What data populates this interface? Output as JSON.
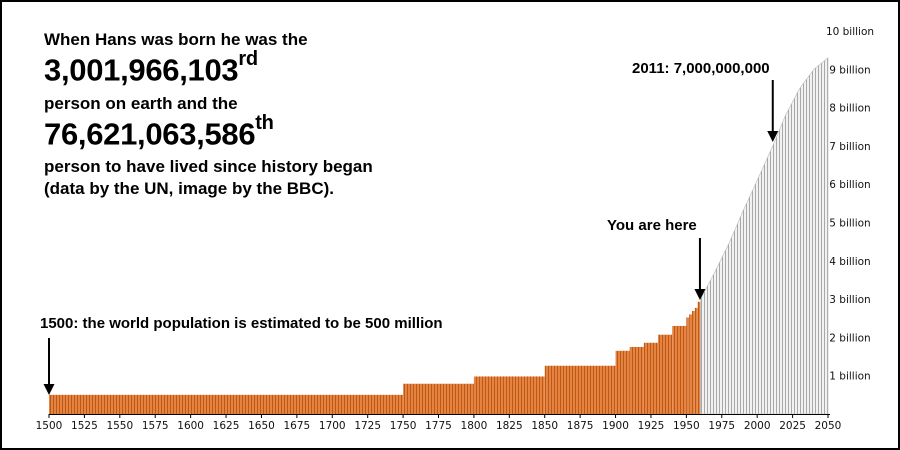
{
  "intro": {
    "line1": "When Hans was born he was the",
    "number1": "3,001,966,103",
    "suffix1": "rd",
    "line2": "person on earth and the",
    "number2": "76,621,063,586",
    "suffix2": "th",
    "line3": "person to have lived since history began",
    "line4": "(data by the UN, image by the BBC)."
  },
  "annotations": {
    "start": "1500: the world population is estimated to be 500 million",
    "here": "You are here",
    "y2011": "2011: 7,000,000,000"
  },
  "colors": {
    "past": "#e8833f",
    "past_stripe": "#b85a1c",
    "future": "#f2f2f2",
    "future_stripe": "#a8a8a8",
    "axis": "#000000"
  },
  "chart_data": {
    "type": "bar",
    "xlabel": "",
    "ylabel": "",
    "xlim": [
      1500,
      2050
    ],
    "ylim": [
      0,
      10
    ],
    "x_ticks": [
      1500,
      1525,
      1550,
      1575,
      1600,
      1625,
      1650,
      1675,
      1700,
      1725,
      1750,
      1775,
      1800,
      1825,
      1850,
      1875,
      1900,
      1925,
      1950,
      1975,
      2000,
      2025,
      2050
    ],
    "y_ticks": [
      {
        "value": 1,
        "label": "1 billion"
      },
      {
        "value": 2,
        "label": "2 billion"
      },
      {
        "value": 3,
        "label": "3 billion"
      },
      {
        "value": 4,
        "label": "4 billion"
      },
      {
        "value": 5,
        "label": "5 billion"
      },
      {
        "value": 6,
        "label": "6 billion"
      },
      {
        "value": 7,
        "label": "7 billion"
      },
      {
        "value": 8,
        "label": "8 billion"
      },
      {
        "value": 9,
        "label": "9 billion"
      },
      {
        "value": 10,
        "label": "10 billion"
      }
    ],
    "series": [
      {
        "values": [
          {
            "start": 1500,
            "end": 1750,
            "y": 0.5
          },
          {
            "start": 1750,
            "end": 1800,
            "y": 0.79
          },
          {
            "start": 1800,
            "end": 1850,
            "y": 0.98
          },
          {
            "start": 1850,
            "end": 1900,
            "y": 1.26
          },
          {
            "start": 1900,
            "end": 1910,
            "y": 1.65
          },
          {
            "start": 1910,
            "end": 1920,
            "y": 1.75
          },
          {
            "start": 1920,
            "end": 1930,
            "y": 1.86
          },
          {
            "start": 1930,
            "end": 1940,
            "y": 2.07
          },
          {
            "start": 1940,
            "end": 1950,
            "y": 2.3
          },
          {
            "start": 1950,
            "end": 1952,
            "y": 2.52
          },
          {
            "start": 1952,
            "end": 1954,
            "y": 2.6
          },
          {
            "start": 1954,
            "end": 1956,
            "y": 2.69
          },
          {
            "start": 1956,
            "end": 1958,
            "y": 2.77
          },
          {
            "start": 1958,
            "end": 1960,
            "y": 2.93
          }
        ]
      },
      {
        "values": [
          {
            "year": 1960,
            "y": 3.0
          },
          {
            "year": 1970,
            "y": 3.7
          },
          {
            "year": 1980,
            "y": 4.45
          },
          {
            "year": 1990,
            "y": 5.3
          },
          {
            "year": 2000,
            "y": 6.1
          },
          {
            "year": 2011,
            "y": 7.0
          },
          {
            "year": 2020,
            "y": 7.8
          },
          {
            "year": 2030,
            "y": 8.5
          },
          {
            "year": 2040,
            "y": 9.0
          },
          {
            "year": 2050,
            "y": 9.3
          }
        ]
      }
    ],
    "markers": [
      {
        "year": 1500,
        "label_key": "start"
      },
      {
        "year": 1961,
        "label_key": "here"
      },
      {
        "year": 2011,
        "label_key": "y2011"
      }
    ]
  }
}
